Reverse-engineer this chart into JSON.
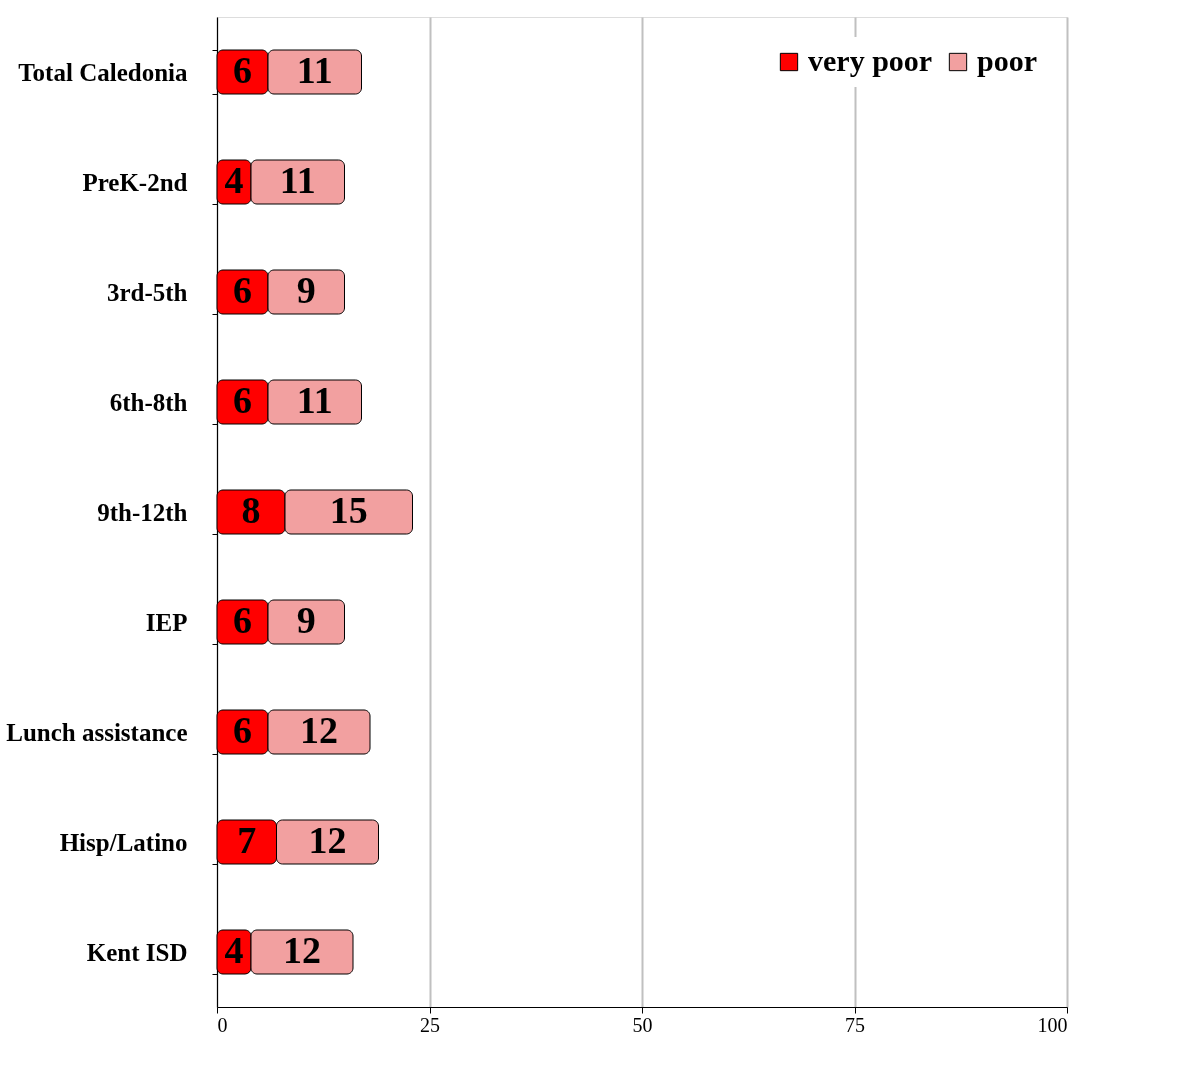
{
  "chart_data": {
    "type": "bar",
    "orientation": "horizontal",
    "stacked": true,
    "categories": [
      "Total Caledonia",
      "PreK-2nd",
      "3rd-5th",
      "6th-8th",
      "9th-12th",
      "IEP",
      "Lunch assistance",
      "Hisp/Latino",
      "Kent ISD"
    ],
    "series": [
      {
        "name": "very poor",
        "color": "#ff0000",
        "values": [
          6,
          4,
          6,
          6,
          8,
          6,
          6,
          7,
          4
        ]
      },
      {
        "name": "poor",
        "color": "#f2a0a0",
        "values": [
          11,
          11,
          9,
          11,
          15,
          9,
          12,
          12,
          12
        ]
      }
    ],
    "xlim": [
      0,
      100
    ],
    "xticks": [
      0,
      25,
      50,
      75,
      100
    ],
    "grid": "x",
    "legend": "top right",
    "data_labels": true
  }
}
